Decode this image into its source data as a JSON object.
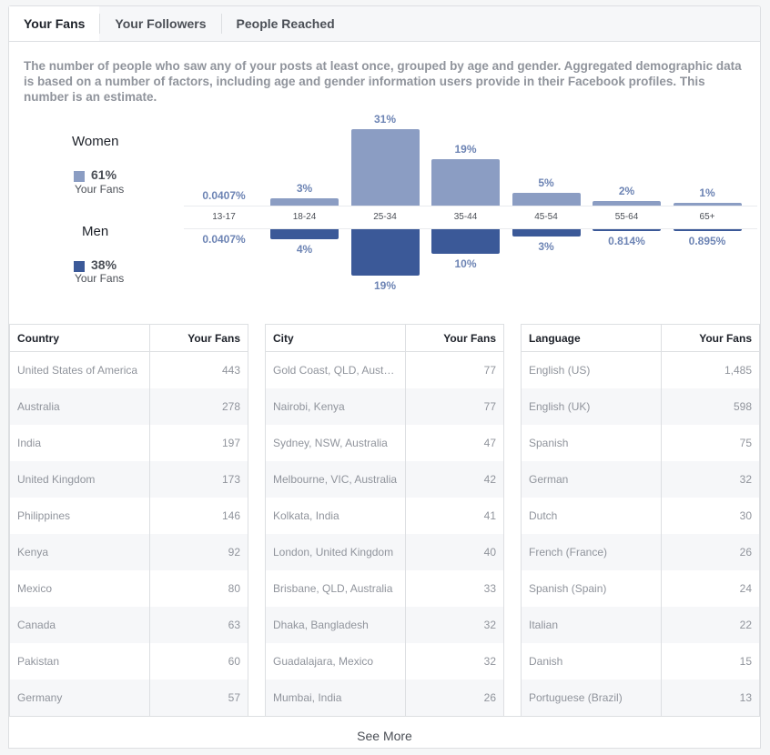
{
  "tabs": [
    {
      "label": "Your Fans",
      "active": true
    },
    {
      "label": "Your Followers",
      "active": false
    },
    {
      "label": "People Reached",
      "active": false
    }
  ],
  "description": "The number of people who saw any of your posts at least once, grouped by age and gender. Aggregated demographic data is based on a number of factors, including age and gender information users provide in their Facebook profiles. This number is an estimate.",
  "legend": {
    "women": {
      "label": "Women",
      "pct": "61%",
      "sub": "Your Fans",
      "color": "#8b9dc3"
    },
    "men": {
      "label": "Men",
      "pct": "38%",
      "sub": "Your Fans",
      "color": "#3b5998"
    }
  },
  "chart_data": {
    "type": "bar",
    "categories": [
      "13-17",
      "18-24",
      "25-34",
      "35-44",
      "45-54",
      "55-64",
      "65+"
    ],
    "series": [
      {
        "name": "Women",
        "values": [
          0.0407,
          3,
          31,
          19,
          5,
          2,
          1
        ],
        "labels": [
          "0.0407%",
          "3%",
          "31%",
          "19%",
          "5%",
          "2%",
          "1%"
        ],
        "color": "#8b9dc3"
      },
      {
        "name": "Men",
        "values": [
          0.0407,
          4,
          19,
          10,
          3,
          0.814,
          0.895
        ],
        "labels": [
          "0.0407%",
          "4%",
          "19%",
          "10%",
          "3%",
          "0.814%",
          "0.895%"
        ],
        "color": "#3b5998"
      }
    ],
    "title": "",
    "xlabel": "",
    "ylabel": ""
  },
  "tables": [
    {
      "headers": [
        "Country",
        "Your Fans"
      ],
      "rows": [
        [
          "United States of America",
          "443"
        ],
        [
          "Australia",
          "278"
        ],
        [
          "India",
          "197"
        ],
        [
          "United Kingdom",
          "173"
        ],
        [
          "Philippines",
          "146"
        ],
        [
          "Kenya",
          "92"
        ],
        [
          "Mexico",
          "80"
        ],
        [
          "Canada",
          "63"
        ],
        [
          "Pakistan",
          "60"
        ],
        [
          "Germany",
          "57"
        ]
      ]
    },
    {
      "headers": [
        "City",
        "Your Fans"
      ],
      "rows": [
        [
          "Gold Coast, QLD, Aust…",
          "77"
        ],
        [
          "Nairobi, Kenya",
          "77"
        ],
        [
          "Sydney, NSW, Australia",
          "47"
        ],
        [
          "Melbourne, VIC, Australia",
          "42"
        ],
        [
          "Kolkata, India",
          "41"
        ],
        [
          "London, United Kingdom",
          "40"
        ],
        [
          "Brisbane, QLD, Australia",
          "33"
        ],
        [
          "Dhaka, Bangladesh",
          "32"
        ],
        [
          "Guadalajara, Mexico",
          "32"
        ],
        [
          "Mumbai, India",
          "26"
        ]
      ]
    },
    {
      "headers": [
        "Language",
        "Your Fans"
      ],
      "rows": [
        [
          "English (US)",
          "1,485"
        ],
        [
          "English (UK)",
          "598"
        ],
        [
          "Spanish",
          "75"
        ],
        [
          "German",
          "32"
        ],
        [
          "Dutch",
          "30"
        ],
        [
          "French (France)",
          "26"
        ],
        [
          "Spanish (Spain)",
          "24"
        ],
        [
          "Italian",
          "22"
        ],
        [
          "Danish",
          "15"
        ],
        [
          "Portuguese (Brazil)",
          "13"
        ]
      ]
    }
  ],
  "see_more_label": "See More"
}
